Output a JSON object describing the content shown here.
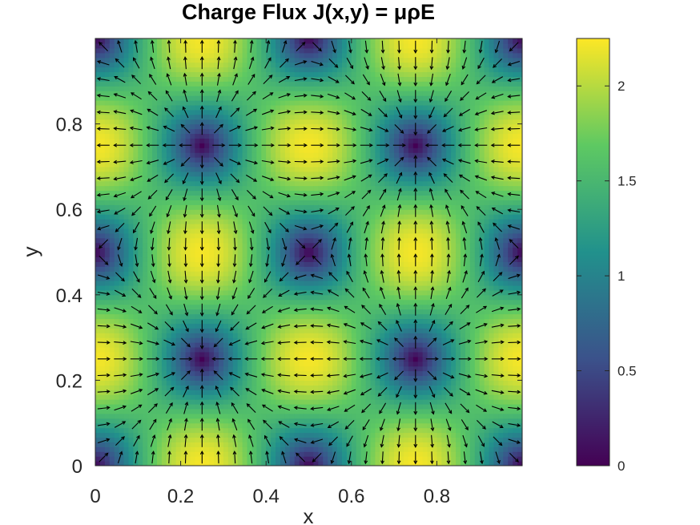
{
  "chart_data": {
    "type": "heatmap",
    "title": "Charge Flux J(x,y) = μρE",
    "xlabel": "x",
    "ylabel": "y",
    "xlim": [
      0,
      1
    ],
    "ylim": [
      0,
      1
    ],
    "x_ticks": [
      0,
      0.2,
      0.4,
      0.6,
      0.8
    ],
    "x_tick_labels": [
      "0",
      "0.2",
      "0.4",
      "0.6",
      "0.8"
    ],
    "y_ticks": [
      0,
      0.2,
      0.4,
      0.6,
      0.8
    ],
    "y_tick_labels": [
      "0",
      "0.2",
      "0.4",
      "0.6",
      "0.8"
    ],
    "field": "|J| = (√2·π/2)·sqrt(sin²(2πx)cos²(2πy) + cos²(2πx)sin²(2πy)); arrows show direction of J = ∇(sin 2πx · sin 2πy)",
    "value_range": [
      0,
      2.22
    ],
    "colormap": "viridis",
    "colormap_stops": [
      "#440154",
      "#3b528b",
      "#21918c",
      "#5ec962",
      "#fde725"
    ],
    "colorbar": {
      "ticks": [
        0,
        0.5,
        1,
        1.5,
        2
      ],
      "tick_labels": [
        "0",
        "0.5",
        "1",
        "1.5",
        "2"
      ],
      "range": [
        0,
        2.25
      ]
    },
    "arrow_color": "#000000",
    "arrow_grid": 26,
    "grid": false
  }
}
